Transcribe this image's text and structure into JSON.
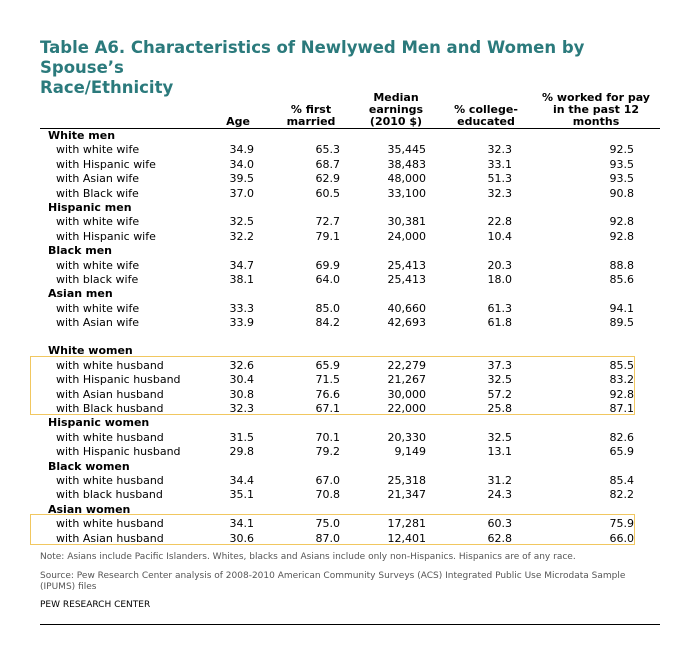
{
  "title": {
    "line1": "Table A6. Characteristics of Newlywed Men and Women by Spouse’s",
    "line2": "Race/Ethnicity"
  },
  "columns": {
    "age": "Age",
    "first_married_l1": "% first",
    "first_married_l2": "married",
    "earnings_l1": "Median",
    "earnings_l2": "earnings",
    "earnings_l3": "(2010 $)",
    "college_l1": "% college-",
    "college_l2": "educated",
    "worked_l1": "% worked for pay",
    "worked_l2": "in the past 12",
    "worked_l3": "months"
  },
  "rows": [
    {
      "label": "White men",
      "group": true
    },
    {
      "label": "with white wife",
      "age": "34.9",
      "first": "65.3",
      "earn": "35,445",
      "coll": "32.3",
      "work": "92.5"
    },
    {
      "label": "with Hispanic wife",
      "age": "34.0",
      "first": "68.7",
      "earn": "38,483",
      "coll": "33.1",
      "work": "93.5"
    },
    {
      "label": "with Asian wife",
      "age": "39.5",
      "first": "62.9",
      "earn": "48,000",
      "coll": "51.3",
      "work": "93.5"
    },
    {
      "label": "with Black wife",
      "age": "37.0",
      "first": "60.5",
      "earn": "33,100",
      "coll": "32.3",
      "work": "90.8"
    },
    {
      "label": "Hispanic men",
      "group": true
    },
    {
      "label": "with white wife",
      "age": "32.5",
      "first": "72.7",
      "earn": "30,381",
      "coll": "22.8",
      "work": "92.8"
    },
    {
      "label": "with Hispanic wife",
      "age": "32.2",
      "first": "79.1",
      "earn": "24,000",
      "coll": "10.4",
      "work": "92.8"
    },
    {
      "label": "Black men",
      "group": true
    },
    {
      "label": "with white wife",
      "age": "34.7",
      "first": "69.9",
      "earn": "25,413",
      "coll": "20.3",
      "work": "88.8"
    },
    {
      "label": "with black wife",
      "age": "38.1",
      "first": "64.0",
      "earn": "25,413",
      "coll": "18.0",
      "work": "85.6"
    },
    {
      "label": "Asian men",
      "group": true
    },
    {
      "label": "with white wife",
      "age": "33.3",
      "first": "85.0",
      "earn": "40,660",
      "coll": "61.3",
      "work": "94.1"
    },
    {
      "label": "with Asian wife",
      "age": "33.9",
      "first": "84.2",
      "earn": "42,693",
      "coll": "61.8",
      "work": "89.5"
    },
    {
      "spacer": true
    },
    {
      "label": "White women",
      "group": true
    },
    {
      "label": "with white husband",
      "age": "32.6",
      "first": "65.9",
      "earn": "22,279",
      "coll": "37.3",
      "work": "85.5"
    },
    {
      "label": "with Hispanic husband",
      "age": "30.4",
      "first": "71.5",
      "earn": "21,267",
      "coll": "32.5",
      "work": "83.2"
    },
    {
      "label": "with Asian husband",
      "age": "30.8",
      "first": "76.6",
      "earn": "30,000",
      "coll": "57.2",
      "work": "92.8"
    },
    {
      "label": "with Black husband",
      "age": "32.3",
      "first": "67.1",
      "earn": "22,000",
      "coll": "25.8",
      "work": "87.1"
    },
    {
      "label": "Hispanic women",
      "group": true
    },
    {
      "label": "with white husband",
      "age": "31.5",
      "first": "70.1",
      "earn": "20,330",
      "coll": "32.5",
      "work": "82.6"
    },
    {
      "label": "with Hispanic husband",
      "age": "29.8",
      "first": "79.2",
      "earn": "9,149",
      "coll": "13.1",
      "work": "65.9"
    },
    {
      "label": "Black women",
      "group": true
    },
    {
      "label": "with white husband",
      "age": "34.4",
      "first": "67.0",
      "earn": "25,318",
      "coll": "31.2",
      "work": "85.4"
    },
    {
      "label": "with black husband",
      "age": "35.1",
      "first": "70.8",
      "earn": "21,347",
      "coll": "24.3",
      "work": "82.2"
    },
    {
      "label": "Asian women",
      "group": true
    },
    {
      "label": "with white husband",
      "age": "34.1",
      "first": "75.0",
      "earn": "17,281",
      "coll": "60.3",
      "work": "75.9"
    },
    {
      "label": "with Asian husband",
      "age": "30.6",
      "first": "87.0",
      "earn": "12,401",
      "coll": "62.8",
      "work": "66.0"
    }
  ],
  "notes": {
    "note": "Note: Asians include Pacific Islanders. Whites, blacks and Asians include only non-Hispanics. Hispanics are of any race.",
    "source": "Source: Pew Research Center analysis of 2008-2010 American Community Surveys (ACS) Integrated Public Use Microdata Sample (IPUMS) files",
    "org": "PEW RESEARCH CENTER"
  },
  "colors": {
    "title": "#2b7a7c",
    "highlight": "#f1c760"
  }
}
